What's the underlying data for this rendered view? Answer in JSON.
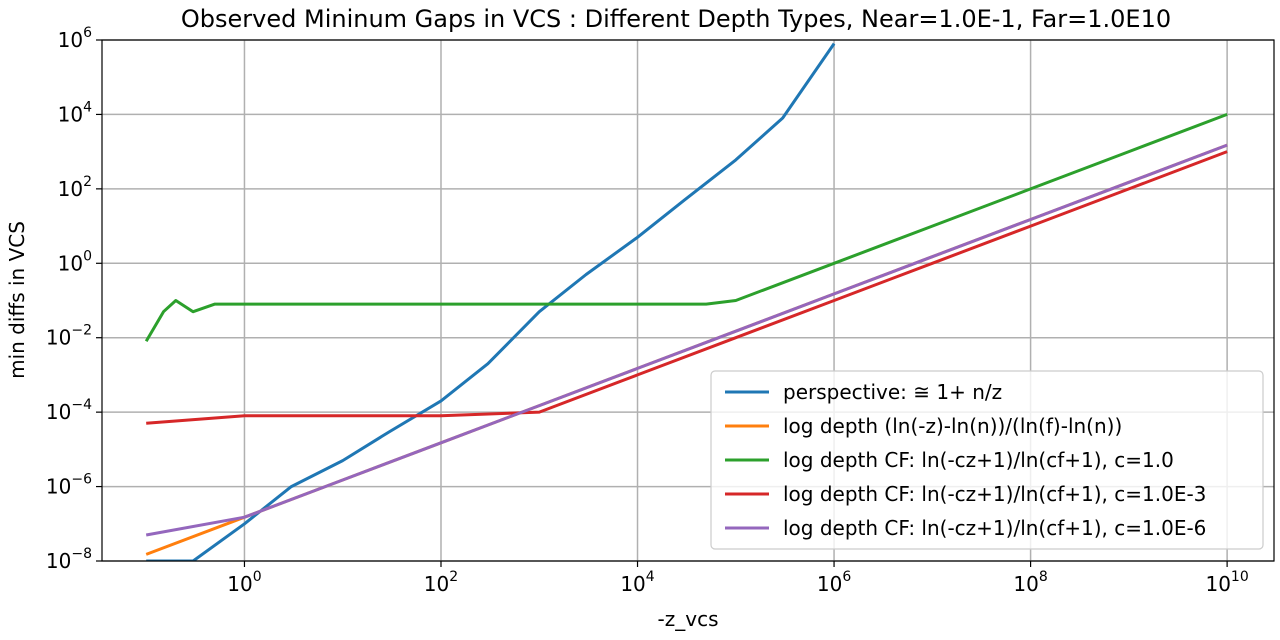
{
  "chart_data": {
    "type": "line",
    "title": "Observed Mininum Gaps in VCS : Different Depth Types, Near=1.0E-1, Far=1.0E10",
    "xlabel": "-z_vcs",
    "ylabel": "min diffs in VCS",
    "xscale": "log",
    "yscale": "log",
    "xlim": [
      0.0355,
      30000000000.0
    ],
    "ylim": [
      1e-08,
      1000000.0
    ],
    "xticks": [
      {
        "base": "10",
        "exp": "0",
        "value": 1
      },
      {
        "base": "10",
        "exp": "2",
        "value": 100
      },
      {
        "base": "10",
        "exp": "4",
        "value": 10000
      },
      {
        "base": "10",
        "exp": "6",
        "value": 1000000
      },
      {
        "base": "10",
        "exp": "8",
        "value": 100000000
      },
      {
        "base": "10",
        "exp": "10",
        "value": 10000000000
      }
    ],
    "yticks": [
      {
        "base": "10",
        "exp": "−8",
        "value": 1e-08
      },
      {
        "base": "10",
        "exp": "−6",
        "value": 1e-06
      },
      {
        "base": "10",
        "exp": "−4",
        "value": 0.0001
      },
      {
        "base": "10",
        "exp": "−2",
        "value": 0.01
      },
      {
        "base": "10",
        "exp": "0",
        "value": 1
      },
      {
        "base": "10",
        "exp": "2",
        "value": 100
      },
      {
        "base": "10",
        "exp": "4",
        "value": 10000
      },
      {
        "base": "10",
        "exp": "6",
        "value": 1000000
      }
    ],
    "grid": true,
    "legend_position": "lower-right",
    "series": [
      {
        "name": "perspective: ≅ 1+ n/z",
        "color": "#1f77b4",
        "x": [
          0.1,
          0.3,
          1,
          3,
          10,
          30,
          100,
          300,
          1000,
          3000,
          10000,
          30000,
          100000,
          300000,
          1000000
        ],
        "y": [
          1e-08,
          1e-08,
          1e-07,
          1e-06,
          5e-06,
          3e-05,
          0.0002,
          0.002,
          0.05,
          0.5,
          5,
          50,
          600,
          8000,
          800000
        ]
      },
      {
        "name": "log depth (ln(-z)-ln(n))/(ln(f)-ln(n))",
        "color": "#ff7f0e",
        "x": [
          0.1,
          1,
          10,
          100,
          1000,
          10000,
          100000,
          1000000,
          10000000,
          100000000,
          1000000000,
          10000000000
        ],
        "y": [
          1.5e-08,
          1.5e-07,
          1.5e-06,
          1.5e-05,
          0.00015,
          0.0015,
          0.015,
          0.15,
          1.5,
          15,
          150,
          1500
        ]
      },
      {
        "name": "log depth CF: ln(-cz+1)/ln(cf+1), c=1.0",
        "color": "#2ca02c",
        "x": [
          0.1,
          0.15,
          0.2,
          0.3,
          0.5,
          1,
          10,
          100,
          1000,
          10000,
          50000,
          100000,
          1000000,
          10000000,
          100000000,
          1000000000,
          10000000000
        ],
        "y": [
          0.008,
          0.05,
          0.1,
          0.05,
          0.08,
          0.08,
          0.08,
          0.08,
          0.08,
          0.08,
          0.08,
          0.1,
          1,
          10,
          100,
          1000,
          10000
        ]
      },
      {
        "name": "log depth CF: ln(-cz+1)/ln(cf+1), c=1.0E-3",
        "color": "#d62728",
        "x": [
          0.1,
          1,
          10,
          100,
          1000,
          10000,
          100000,
          1000000,
          10000000,
          100000000,
          1000000000,
          10000000000
        ],
        "y": [
          5e-05,
          8e-05,
          8e-05,
          8e-05,
          0.0001,
          0.001,
          0.01,
          0.1,
          1,
          10,
          100,
          1000
        ]
      },
      {
        "name": "log depth CF: ln(-cz+1)/ln(cf+1), c=1.0E-6",
        "color": "#9467bd",
        "x": [
          0.1,
          1,
          10,
          100,
          1000,
          10000,
          100000,
          1000000,
          10000000,
          100000000,
          1000000000,
          10000000000
        ],
        "y": [
          5e-08,
          1.5e-07,
          1.5e-06,
          1.5e-05,
          0.00015,
          0.0015,
          0.015,
          0.15,
          1.5,
          15,
          150,
          1500
        ]
      }
    ]
  }
}
